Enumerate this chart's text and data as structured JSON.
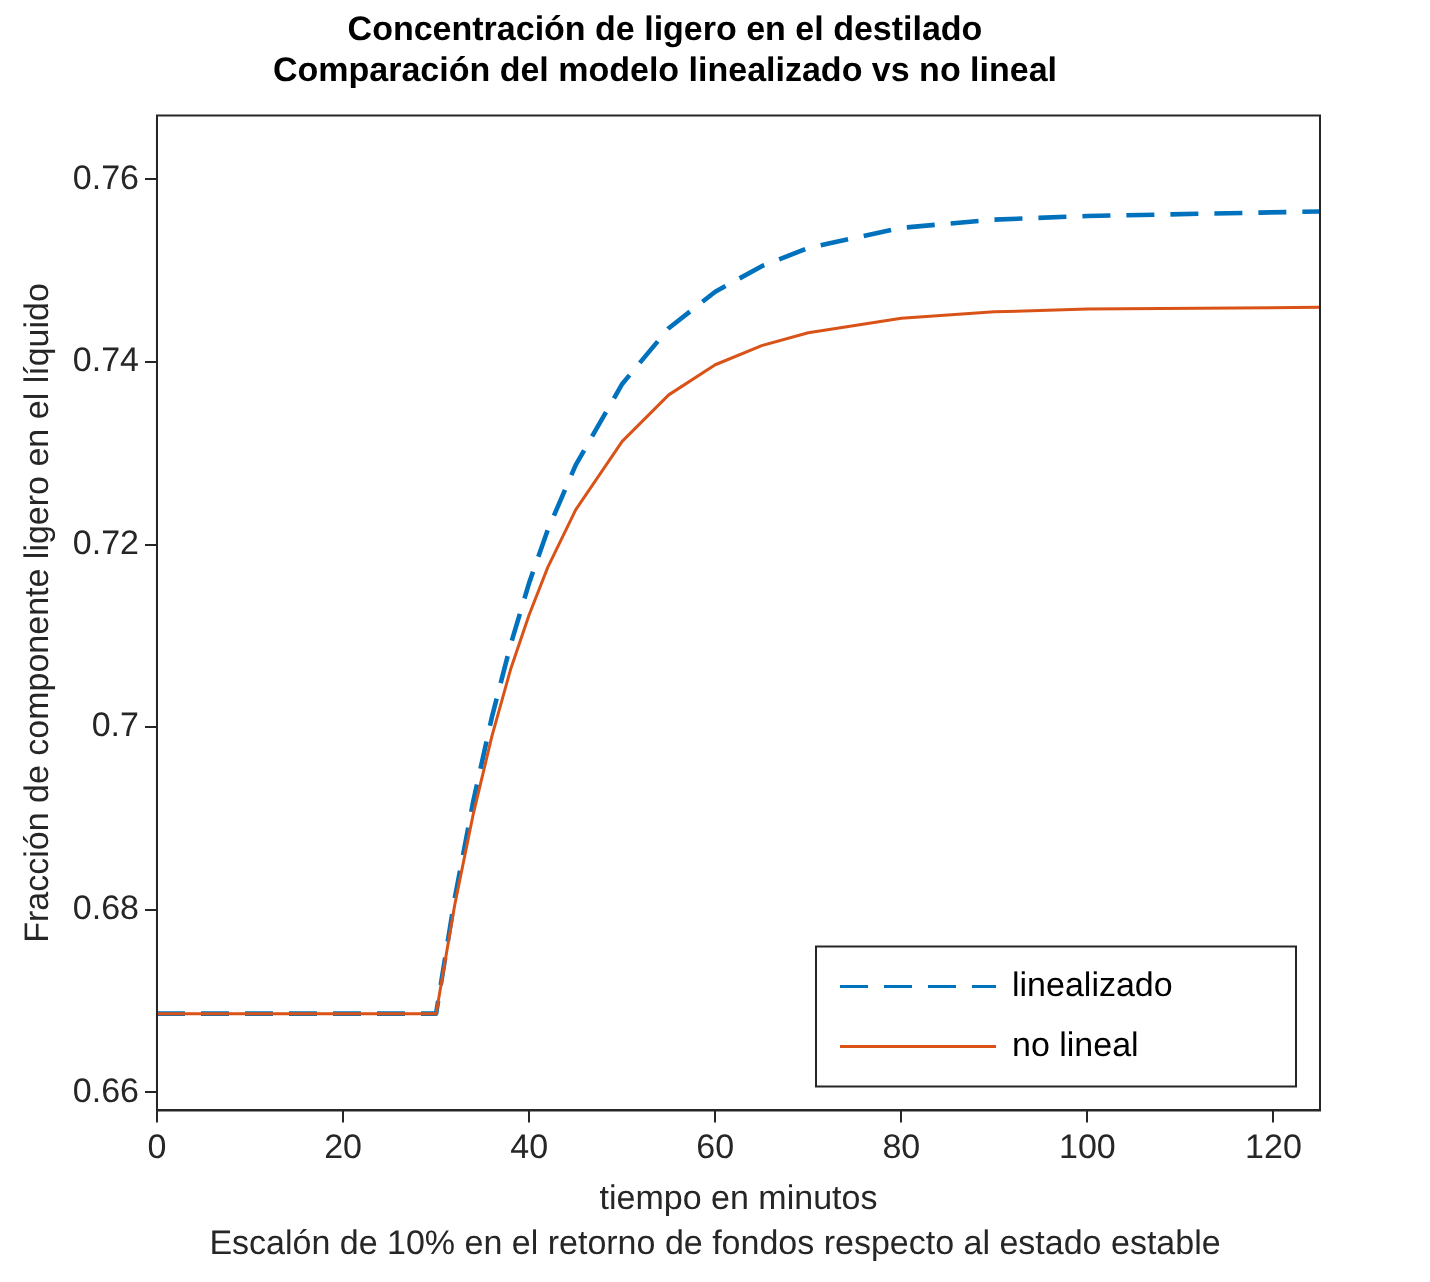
{
  "chart_data": {
    "type": "line",
    "title": "Concentración de ligero en el destilado",
    "subtitle": "Comparación del modelo linealizado vs no lineal",
    "xlabel": "tiempo en minutos",
    "ylabel": "Fracción de componente ligero en el líquido",
    "annotations": [
      "Escalón de 10% en el retorno de fondos respecto al estado estable"
    ],
    "x": [
      0,
      30,
      32,
      34,
      36,
      38,
      40,
      42,
      45,
      50,
      55,
      60,
      65,
      70,
      80,
      90,
      100,
      125
    ],
    "series": [
      {
        "name": "linealizado",
        "color": "#0072bd",
        "line_style": "dashed",
        "values": [
          0.6686,
          0.6686,
          0.6812,
          0.6919,
          0.7011,
          0.709,
          0.7158,
          0.7216,
          0.7287,
          0.7376,
          0.7437,
          0.7477,
          0.7505,
          0.7525,
          0.7547,
          0.7556,
          0.756,
          0.7565
        ]
      },
      {
        "name": "no lineal",
        "color": "#d95319",
        "line_style": "solid",
        "values": [
          0.6686,
          0.6686,
          0.6805,
          0.6905,
          0.699,
          0.7063,
          0.7123,
          0.7175,
          0.7238,
          0.7313,
          0.7364,
          0.7397,
          0.7418,
          0.7432,
          0.7448,
          0.7455,
          0.7458,
          0.746
        ]
      }
    ],
    "xlim": [
      0,
      125
    ],
    "xticks": [
      0,
      20,
      40,
      60,
      80,
      100,
      120
    ],
    "ylim": [
      0.658,
      0.767
    ],
    "yticks": [
      0.66,
      0.68,
      0.7,
      0.72,
      0.74,
      0.76
    ],
    "grid": false,
    "legend": "bottom right",
    "marker": "none"
  }
}
